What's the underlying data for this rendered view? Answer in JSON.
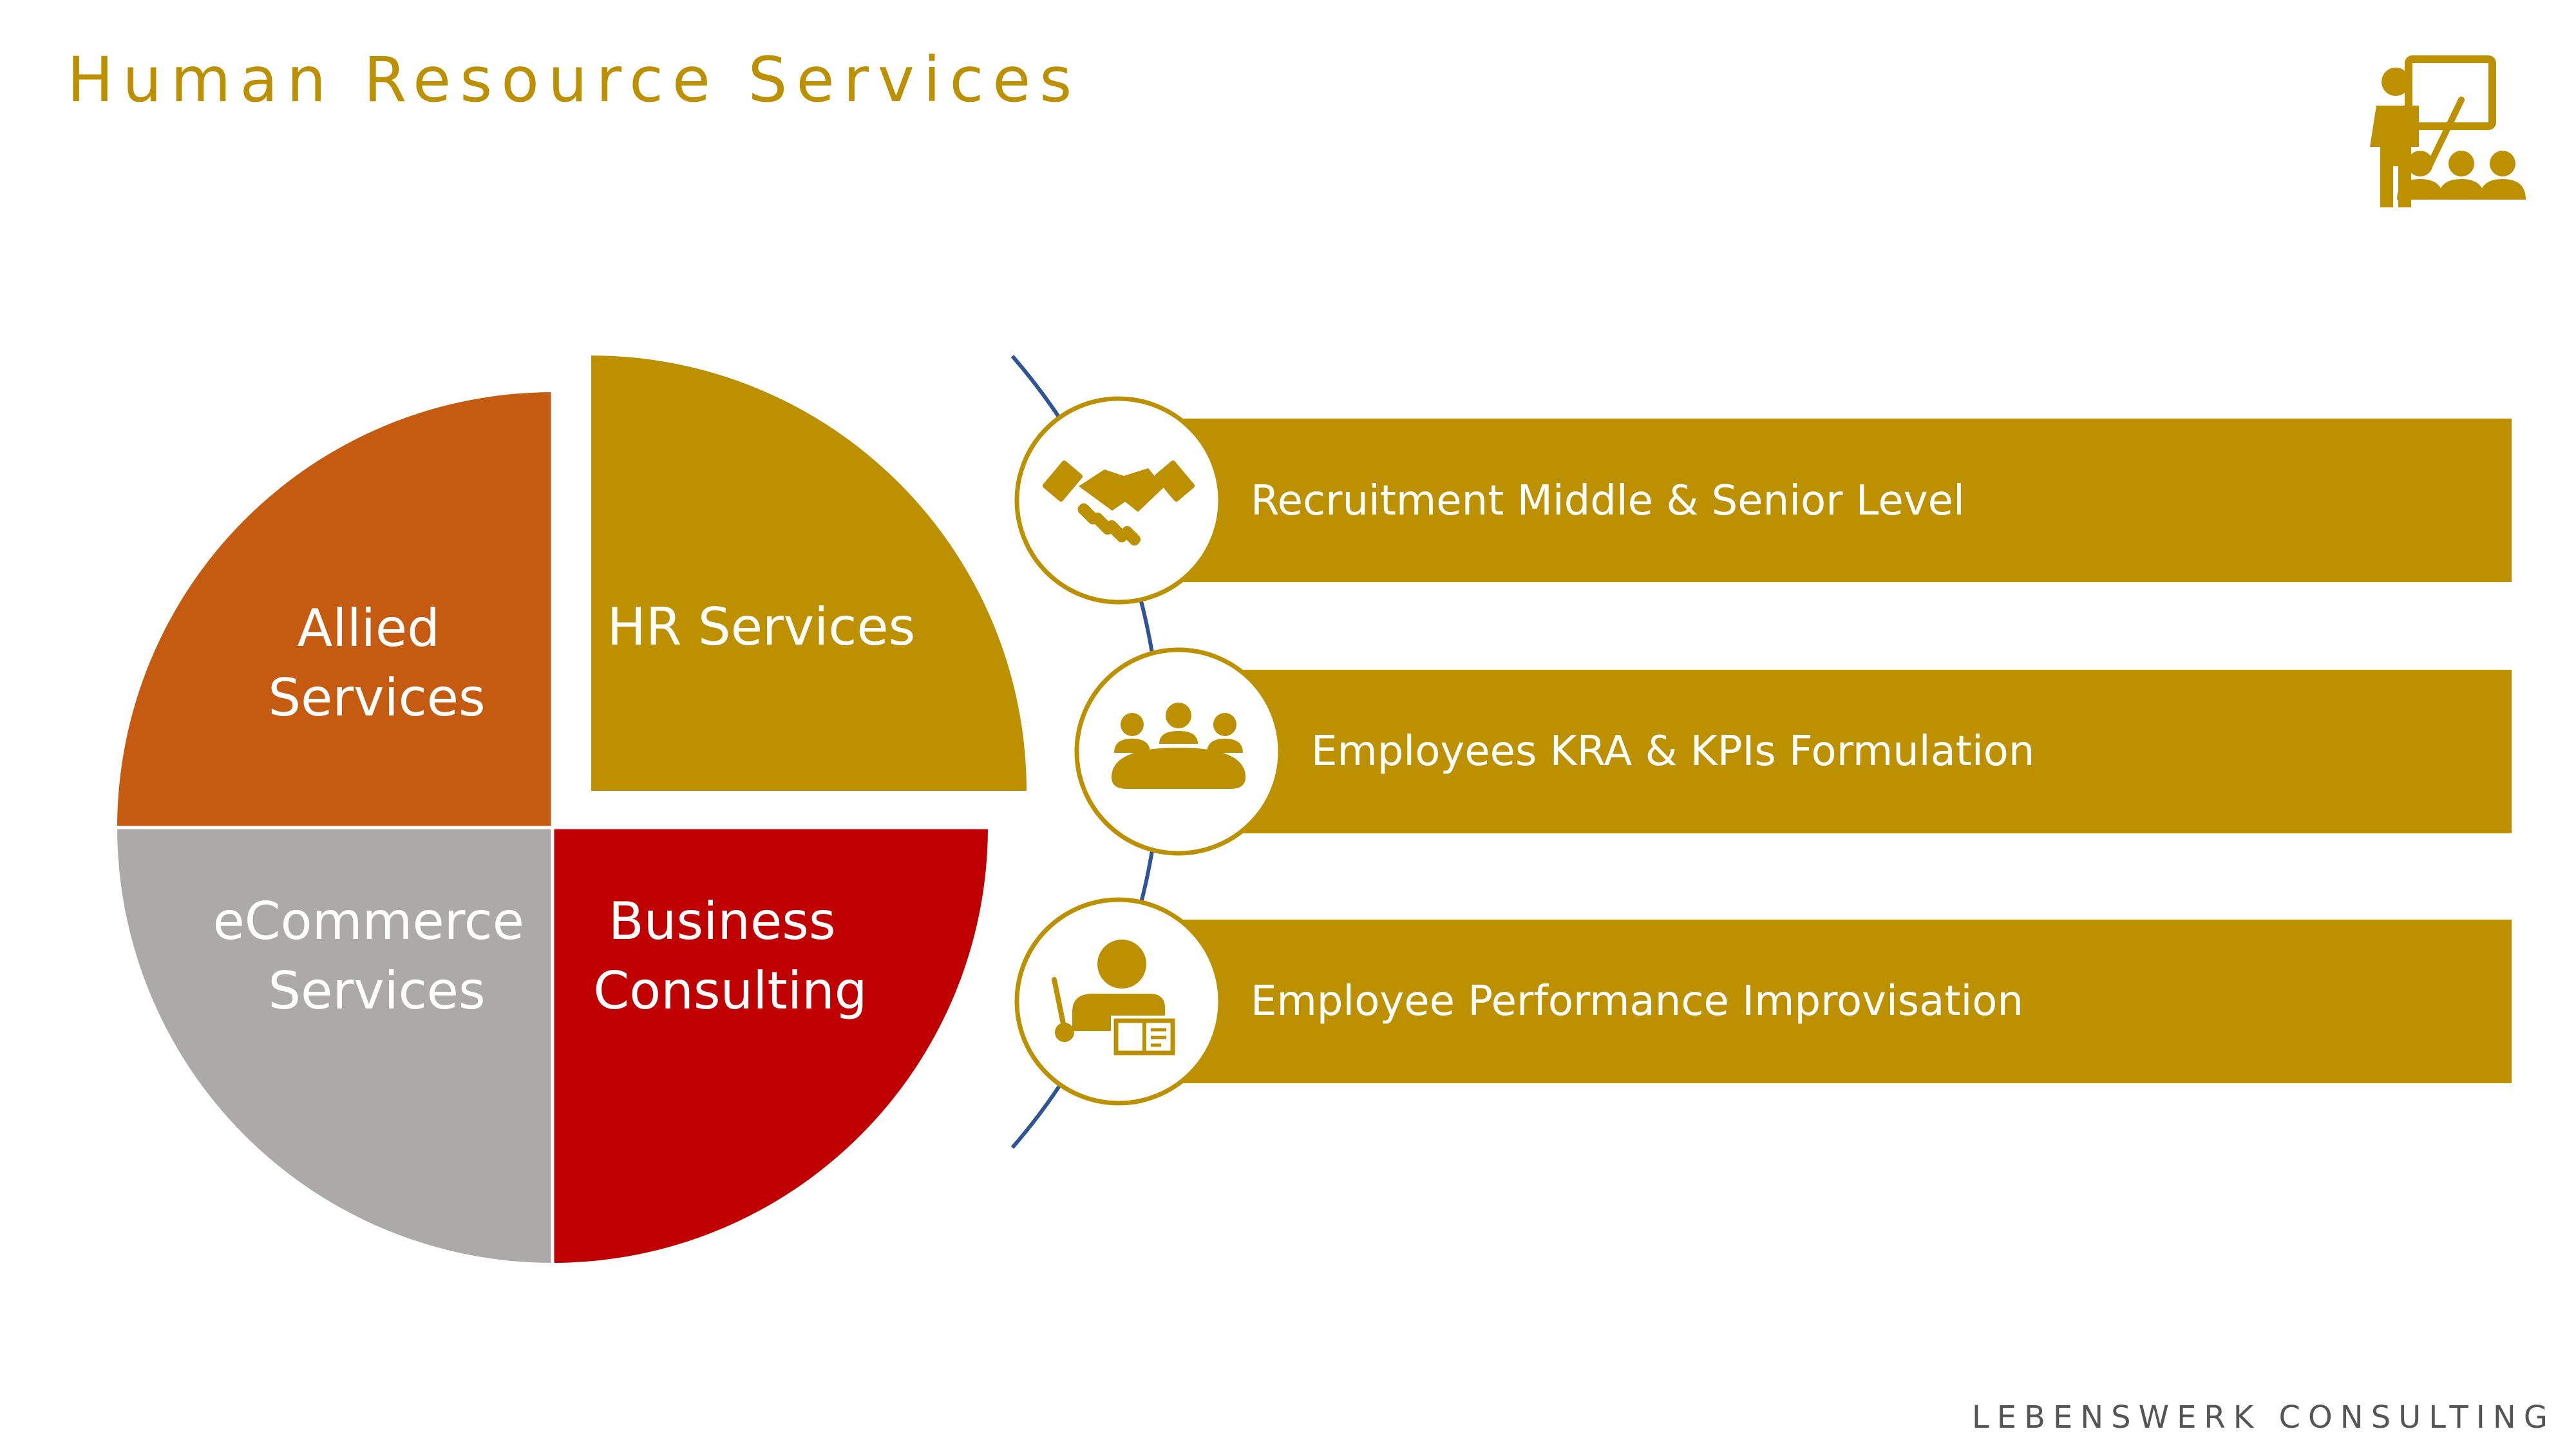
{
  "page": {
    "title": "Human Resource Services",
    "footer_brand": "LEBENSWERK CONSULTING"
  },
  "colors": {
    "gold": "#BD9000",
    "orange": "#C55A11",
    "grey": "#ABAAA8",
    "red": "#C00000",
    "white": "#FFFFFF",
    "arc_line": "#2F5597",
    "footer_text": "#555555"
  },
  "header_icon": "teacher-presentation-icon",
  "quadrants": [
    {
      "id": "allied",
      "line1": "Allied",
      "line2": "Services",
      "color": "#C55A11"
    },
    {
      "id": "hr",
      "line1": "HR Services",
      "line2": "",
      "color": "#BD9000"
    },
    {
      "id": "ecommerce",
      "line1": "eCommerce",
      "line2": "Services",
      "color": "#ABAAA8"
    },
    {
      "id": "business",
      "line1": "Business",
      "line2": "Consulting",
      "color": "#C00000"
    }
  ],
  "hr_services": [
    {
      "label": "Recruitment Middle & Senior Level",
      "icon": "handshake-icon"
    },
    {
      "label": "Employees KRA & KPIs Formulation",
      "icon": "team-meeting-icon"
    },
    {
      "label": "Employee Performance Improvisation",
      "icon": "training-icon"
    }
  ]
}
